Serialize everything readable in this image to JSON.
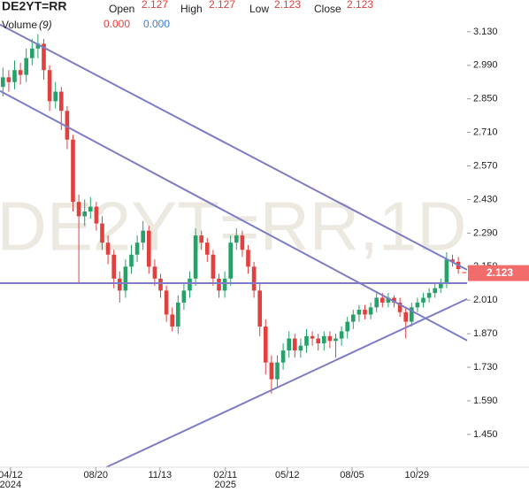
{
  "header": {
    "symbol": "DE2YT=RR",
    "open_label": "Open",
    "open": 2.127,
    "high_label": "High",
    "high": 2.127,
    "low_label": "Low",
    "low": 2.123,
    "close_label": "Close",
    "close": 2.123,
    "volume_label": "Volume",
    "volume_period": "(9)",
    "volume_values": [
      {
        "value": 0,
        "label": "0.000"
      },
      {
        "value": 0,
        "label": "0.000"
      }
    ]
  },
  "chart_data": {
    "type": "candlestick",
    "watermark": "DE2YT=RR,1D",
    "up_color": "#26a269",
    "down_color": "#e0413f",
    "line_color": "#7e7cc4",
    "badge_color": "#f26c6c",
    "xlim": [
      0,
      80
    ],
    "ylim": [
      1.313,
      3.196
    ],
    "xticks": [
      {
        "value": 1.8,
        "label": "04/12"
      },
      {
        "value": 16.4,
        "label": "08/20"
      },
      {
        "value": 27.4,
        "label": "11/13"
      },
      {
        "value": 38.6,
        "label": "02/11"
      },
      {
        "value": 49.2,
        "label": "05/12"
      },
      {
        "value": 60.3,
        "label": "08/05"
      },
      {
        "value": 71.4,
        "label": "10/29"
      }
    ],
    "year_labels": [
      {
        "value": 1.8,
        "label": "2024"
      },
      {
        "value": 38.6,
        "label": "2025"
      }
    ],
    "yticks": [
      {
        "value": 3.13,
        "label": "3.130"
      },
      {
        "value": 2.99,
        "label": "2.990"
      },
      {
        "value": 2.85,
        "label": "2.850"
      },
      {
        "value": 2.71,
        "label": "2.710"
      },
      {
        "value": 2.57,
        "label": "2.570"
      },
      {
        "value": 2.43,
        "label": "2.430"
      },
      {
        "value": 2.29,
        "label": "2.290"
      },
      {
        "value": 2.15,
        "label": "2.150"
      },
      {
        "value": 2.01,
        "label": "2.010"
      },
      {
        "value": 1.87,
        "label": "1.870"
      },
      {
        "value": 1.73,
        "label": "1.730"
      },
      {
        "value": 1.59,
        "label": "1.590"
      },
      {
        "value": 1.45,
        "label": "1.450"
      }
    ],
    "open": [
      2.9,
      2.94,
      2.92,
      2.97,
      2.95,
      3.02,
      3.06,
      3.08,
      2.97,
      2.84,
      2.88,
      2.8,
      2.68,
      2.42,
      2.36,
      2.38,
      2.4,
      2.33,
      2.25,
      2.2,
      2.1,
      2.05,
      2.15,
      2.2,
      2.25,
      2.3,
      2.15,
      2.1,
      2.05,
      1.95,
      1.9,
      2.0,
      2.05,
      2.1,
      2.28,
      2.25,
      2.2,
      2.1,
      2.05,
      2.1,
      2.25,
      2.28,
      2.22,
      2.15,
      2.05,
      1.9,
      1.75,
      1.68,
      1.75,
      1.8,
      1.85,
      1.8,
      1.82,
      1.86,
      1.85,
      1.83,
      1.86,
      1.84,
      1.85,
      1.88,
      1.92,
      1.95,
      1.97,
      1.95,
      1.98,
      2.02,
      2.0,
      2.02,
      2.0,
      1.96,
      1.92,
      1.98,
      2.0,
      2.02,
      2.04,
      2.06,
      2.08,
      2.18,
      2.17,
      2.127
    ],
    "high": [
      2.98,
      2.97,
      3.01,
      3.0,
      3.06,
      3.1,
      3.12,
      3.1,
      2.99,
      2.92,
      2.9,
      2.82,
      2.7,
      2.45,
      2.43,
      2.44,
      2.42,
      2.36,
      2.28,
      2.22,
      2.13,
      2.18,
      2.24,
      2.28,
      2.34,
      2.32,
      2.18,
      2.12,
      2.07,
      1.98,
      2.03,
      2.08,
      2.13,
      2.31,
      2.3,
      2.27,
      2.22,
      2.12,
      2.13,
      2.28,
      2.31,
      2.3,
      2.24,
      2.17,
      2.08,
      1.93,
      1.78,
      1.78,
      1.83,
      1.88,
      1.87,
      1.85,
      1.89,
      1.88,
      1.87,
      1.88,
      1.88,
      1.87,
      1.9,
      1.94,
      1.97,
      1.99,
      1.99,
      2.0,
      2.04,
      2.04,
      2.04,
      2.03,
      2.02,
      1.98,
      2.0,
      2.02,
      2.04,
      2.06,
      2.08,
      2.1,
      2.21,
      2.2,
      2.19,
      2.127
    ],
    "low": [
      2.86,
      2.88,
      2.89,
      2.91,
      2.92,
      2.99,
      3.02,
      2.93,
      2.8,
      2.81,
      2.72,
      2.64,
      2.38,
      2.08,
      2.32,
      2.35,
      2.3,
      2.22,
      2.16,
      2.06,
      2.0,
      2.02,
      2.12,
      2.17,
      2.22,
      2.12,
      2.07,
      2.02,
      1.92,
      1.88,
      1.87,
      1.97,
      2.02,
      2.07,
      2.22,
      2.17,
      2.07,
      2.02,
      2.02,
      2.07,
      2.22,
      2.19,
      2.12,
      2.02,
      1.86,
      1.7,
      1.62,
      1.65,
      1.72,
      1.77,
      1.77,
      1.77,
      1.79,
      1.82,
      1.8,
      1.8,
      1.81,
      1.77,
      1.82,
      1.85,
      1.89,
      1.92,
      1.93,
      1.93,
      1.96,
      1.98,
      1.98,
      1.98,
      1.94,
      1.85,
      1.9,
      1.96,
      1.98,
      2.0,
      2.02,
      2.04,
      2.06,
      2.15,
      2.12,
      2.123
    ],
    "close": [
      2.94,
      2.92,
      2.97,
      2.95,
      3.02,
      3.06,
      3.08,
      2.97,
      2.84,
      2.88,
      2.8,
      2.68,
      2.42,
      2.36,
      2.38,
      2.4,
      2.33,
      2.25,
      2.2,
      2.1,
      2.05,
      2.15,
      2.2,
      2.25,
      2.3,
      2.15,
      2.1,
      2.05,
      1.95,
      1.9,
      2.0,
      2.05,
      2.1,
      2.28,
      2.25,
      2.2,
      2.1,
      2.05,
      2.1,
      2.25,
      2.28,
      2.22,
      2.15,
      2.05,
      1.9,
      1.75,
      1.68,
      1.75,
      1.8,
      1.85,
      1.8,
      1.82,
      1.86,
      1.85,
      1.83,
      1.86,
      1.84,
      1.85,
      1.88,
      1.92,
      1.95,
      1.97,
      1.95,
      1.98,
      2.02,
      2.0,
      2.02,
      2.0,
      1.96,
      1.92,
      1.98,
      2.0,
      2.02,
      2.04,
      2.06,
      2.08,
      2.18,
      2.17,
      2.14,
      2.123
    ],
    "trendlines": [
      [
        0,
        3.16,
        80,
        2.137
      ],
      [
        0,
        2.883,
        80,
        1.842
      ],
      [
        0,
        2.081,
        80,
        2.081
      ],
      [
        18.2,
        1.313,
        80,
        2.015
      ]
    ]
  }
}
